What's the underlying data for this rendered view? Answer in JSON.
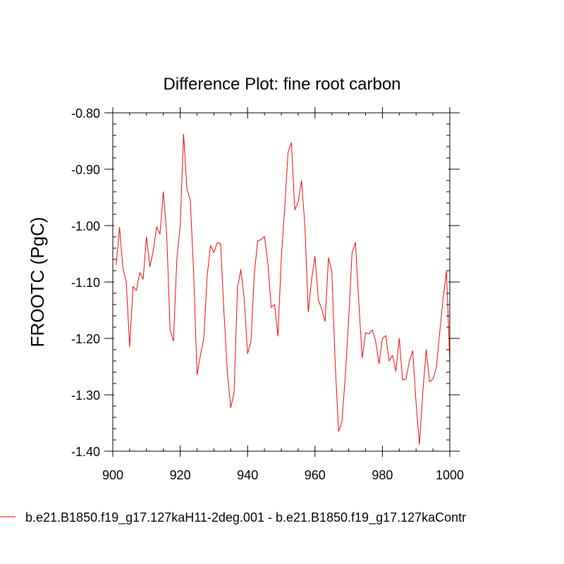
{
  "chart_data": {
    "type": "line",
    "title": "Difference Plot: fine root carbon",
    "xlabel": "",
    "ylabel": "FROOTC  (PgC)",
    "xlim": [
      900,
      1000
    ],
    "ylim": [
      -1.4,
      -0.8
    ],
    "x_ticks": [
      900,
      920,
      940,
      960,
      980,
      1000
    ],
    "x_tick_labels": [
      "900",
      "920",
      "940",
      "960",
      "980",
      "1000"
    ],
    "y_ticks": [
      -0.8,
      -0.9,
      -1.0,
      -1.1,
      -1.2,
      -1.3,
      -1.4
    ],
    "y_tick_labels": [
      "-0.80",
      "-0.90",
      "-1.00",
      "-1.10",
      "-1.20",
      "-1.30",
      "-1.40"
    ],
    "grid": false,
    "legend_position": "bottom",
    "series": [
      {
        "name": "b.e21.B1850.f19_g17.127kaH11-2deg.001 - b.e21.B1850.f19_g17.127kaContr",
        "color": "#ff0000",
        "x": [
          901,
          902,
          903,
          904,
          905,
          906,
          907,
          908,
          909,
          910,
          911,
          912,
          913,
          914,
          915,
          916,
          917,
          918,
          919,
          920,
          921,
          922,
          923,
          924,
          925,
          926,
          927,
          928,
          929,
          930,
          931,
          932,
          933,
          934,
          935,
          936,
          937,
          938,
          939,
          940,
          941,
          942,
          943,
          944,
          945,
          946,
          947,
          948,
          949,
          950,
          951,
          952,
          953,
          954,
          955,
          956,
          957,
          958,
          959,
          960,
          961,
          962,
          963,
          964,
          965,
          966,
          967,
          968,
          969,
          970,
          971,
          972,
          973,
          974,
          975,
          976,
          977,
          978,
          979,
          980,
          981,
          982,
          983,
          984,
          985,
          986,
          987,
          988,
          989,
          990,
          991,
          992,
          993,
          994,
          995,
          996,
          997,
          998,
          999,
          1000
        ],
        "y": [
          -1.07,
          -1.003,
          -1.075,
          -1.1,
          -1.215,
          -1.108,
          -1.115,
          -1.083,
          -1.095,
          -1.02,
          -1.073,
          -1.045,
          -1.002,
          -1.015,
          -0.94,
          -1.015,
          -1.185,
          -1.205,
          -1.06,
          -1.0,
          -0.838,
          -0.935,
          -0.955,
          -1.085,
          -1.265,
          -1.23,
          -1.2,
          -1.09,
          -1.035,
          -1.048,
          -1.03,
          -1.032,
          -1.155,
          -1.26,
          -1.323,
          -1.295,
          -1.11,
          -1.078,
          -1.13,
          -1.227,
          -1.205,
          -1.085,
          -1.027,
          -1.025,
          -1.019,
          -1.065,
          -1.145,
          -1.14,
          -1.196,
          -1.058,
          -0.97,
          -0.87,
          -0.853,
          -0.972,
          -0.958,
          -0.92,
          -1.0,
          -1.153,
          -1.095,
          -1.054,
          -1.132,
          -1.148,
          -1.17,
          -1.057,
          -1.082,
          -1.245,
          -1.365,
          -1.348,
          -1.266,
          -1.165,
          -1.048,
          -1.03,
          -1.135,
          -1.235,
          -1.19,
          -1.192,
          -1.185,
          -1.205,
          -1.245,
          -1.2,
          -1.195,
          -1.24,
          -1.23,
          -1.258,
          -1.2,
          -1.274,
          -1.272,
          -1.24,
          -1.222,
          -1.315,
          -1.388,
          -1.295,
          -1.22,
          -1.277,
          -1.272,
          -1.252,
          -1.19,
          -1.13,
          -1.08,
          -1.24
        ]
      }
    ]
  }
}
